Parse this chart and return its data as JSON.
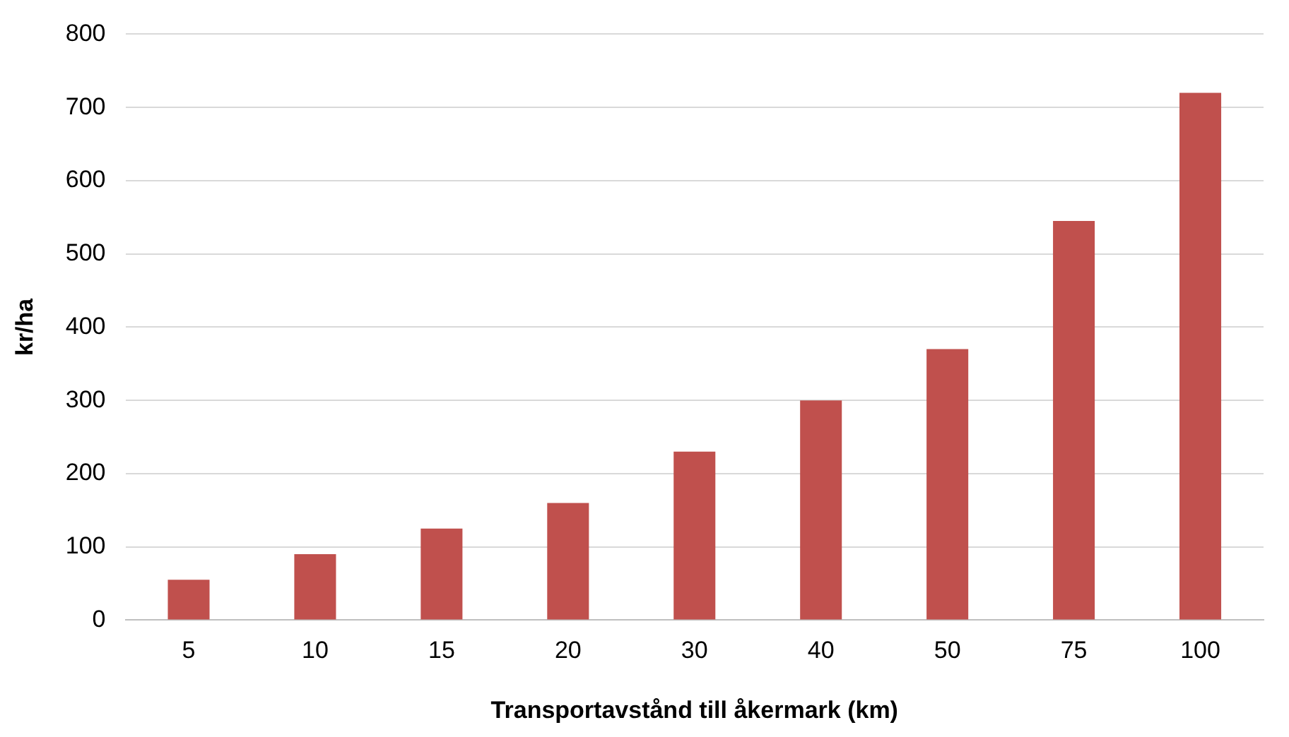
{
  "chart_data": {
    "type": "bar",
    "xlabel": "Transportavstånd till åkermark (km)",
    "ylabel": "kr/ha",
    "categories": [
      "5",
      "10",
      "15",
      "20",
      "30",
      "40",
      "50",
      "75",
      "100"
    ],
    "values": [
      55,
      90,
      125,
      160,
      230,
      300,
      370,
      545,
      720
    ],
    "color": "#c0504d",
    "ylim": [
      0,
      800
    ],
    "yticks": [
      0,
      100,
      200,
      300,
      400,
      500,
      600,
      700,
      800
    ],
    "grid": "y"
  }
}
